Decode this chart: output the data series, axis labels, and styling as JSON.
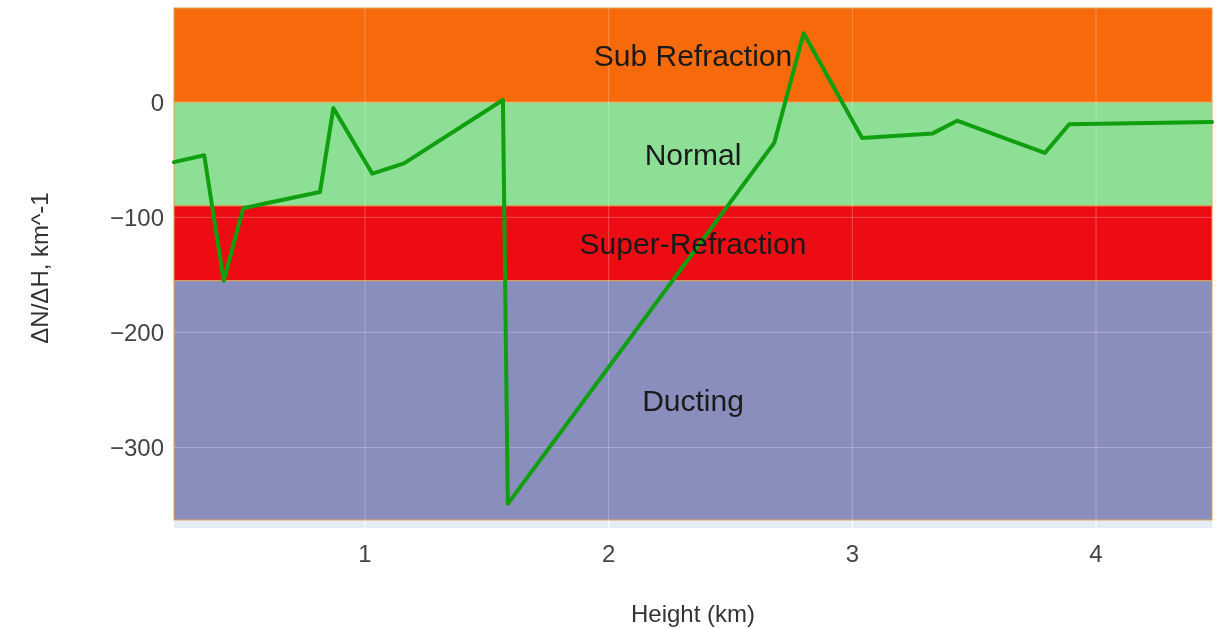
{
  "chart_data": {
    "type": "line",
    "xlabel": "Height (km)",
    "ylabel": "ΔN/ΔH, km^-1",
    "xlim": [
      0.216,
      4.476
    ],
    "xticks": [
      1,
      2,
      3,
      4
    ],
    "ylim": [
      -370,
      82
    ],
    "yticks": [
      0,
      -100,
      -200,
      -300
    ],
    "grid": true,
    "marker": "none",
    "line_style": "solid",
    "series": [
      {
        "color": "#0f9f0f",
        "x": [
          0.216,
          0.34,
          0.42,
          0.5,
          0.815,
          0.87,
          1.03,
          1.16,
          1.566,
          1.586,
          2.68,
          2.8,
          3.04,
          3.33,
          3.43,
          3.79,
          3.89,
          4.476
        ],
        "values": [
          -52,
          -46,
          -155,
          -92,
          -78,
          -5,
          -62,
          -53,
          2,
          -349,
          -35,
          60,
          -31,
          -27,
          -16,
          -44,
          -19,
          -17
        ]
      }
    ],
    "bands": [
      {
        "axis": "y",
        "from": 0,
        "to": 82,
        "label": "Sub Refraction",
        "color": "#f76a0c"
      },
      {
        "axis": "y",
        "from": -90,
        "to": 0,
        "label": "Normal",
        "color": "#8cdf95"
      },
      {
        "axis": "y",
        "from": -155,
        "to": -90,
        "label": "Super-Refraction",
        "color": "#ee0c14"
      },
      {
        "axis": "y",
        "from": -363,
        "to": -155,
        "label": "Ducting",
        "color": "#8a8ebd"
      }
    ]
  }
}
